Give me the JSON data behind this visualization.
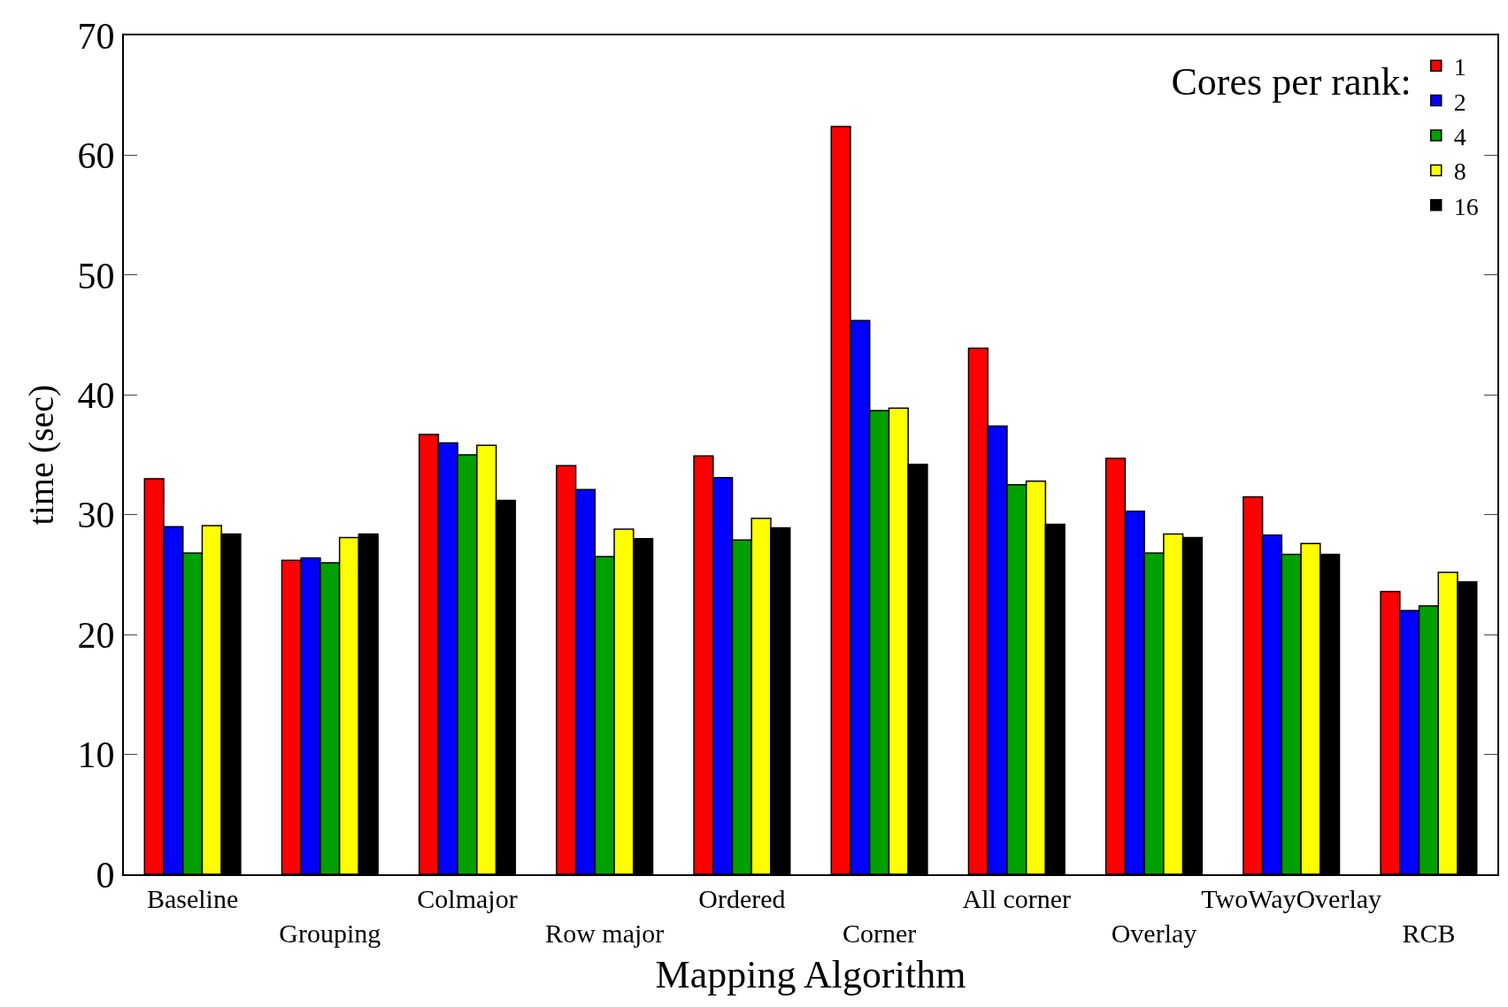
{
  "chart_data": {
    "type": "bar",
    "xlabel": "Mapping Algorithm",
    "ylabel": "time (sec)",
    "legend_title": "Cores per rank:",
    "categories": [
      "Baseline",
      "Grouping",
      "Colmajor",
      "Row major",
      "Ordered",
      "Corner",
      "All corner",
      "Overlay",
      "TwoWayOverlay",
      "RCB"
    ],
    "series": [
      {
        "name": "1",
        "color": "#ff0000",
        "values": [
          33.0,
          26.2,
          36.7,
          34.1,
          34.9,
          62.4,
          43.9,
          34.7,
          31.5,
          23.6
        ]
      },
      {
        "name": "2",
        "color": "#0000ff",
        "values": [
          29.0,
          26.4,
          36.0,
          32.1,
          33.1,
          46.2,
          37.4,
          30.3,
          28.3,
          22.0
        ]
      },
      {
        "name": "4",
        "color": "#00a000",
        "values": [
          26.8,
          26.0,
          35.0,
          26.5,
          27.9,
          38.7,
          32.5,
          26.8,
          26.7,
          22.4
        ]
      },
      {
        "name": "8",
        "color": "#ffff00",
        "values": [
          29.1,
          28.1,
          35.8,
          28.8,
          29.7,
          38.9,
          32.8,
          28.4,
          27.6,
          25.2
        ]
      },
      {
        "name": "16",
        "color": "#000000",
        "values": [
          28.4,
          28.4,
          31.2,
          28.0,
          28.9,
          34.2,
          29.2,
          28.1,
          26.7,
          24.4
        ]
      }
    ],
    "ylim": [
      0,
      70
    ],
    "yticks": [
      0,
      10,
      20,
      30,
      40,
      50,
      60,
      70
    ],
    "legend": "top right"
  }
}
